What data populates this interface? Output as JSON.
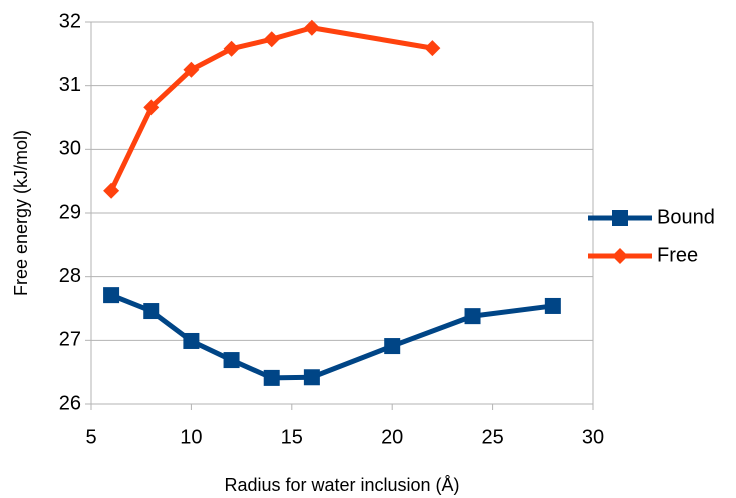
{
  "chart_data": {
    "type": "line",
    "x_label": "Radius for water inclusion (Å)",
    "y_label": "Free energy (kJ/mol)",
    "xlim": [
      5,
      30
    ],
    "xticks": [
      5,
      10,
      15,
      20,
      25,
      30
    ],
    "ylim": [
      26,
      32
    ],
    "yticks": [
      26,
      27,
      28,
      29,
      30,
      31,
      32
    ],
    "grid": true,
    "legend": "right",
    "series": [
      {
        "name": "Bound",
        "color": "#004586",
        "marker": "square",
        "x": [
          6,
          8,
          10,
          12,
          14,
          16,
          20,
          24,
          28
        ],
        "values": [
          27.71,
          27.46,
          26.99,
          26.69,
          26.41,
          26.42,
          26.91,
          27.38,
          27.54
        ]
      },
      {
        "name": "Free",
        "color": "#ff420e",
        "marker": "diamond",
        "x": [
          6,
          8,
          10,
          12,
          14,
          16,
          22
        ],
        "values": [
          29.35,
          30.66,
          31.25,
          31.58,
          31.73,
          31.91,
          31.59
        ]
      }
    ]
  }
}
